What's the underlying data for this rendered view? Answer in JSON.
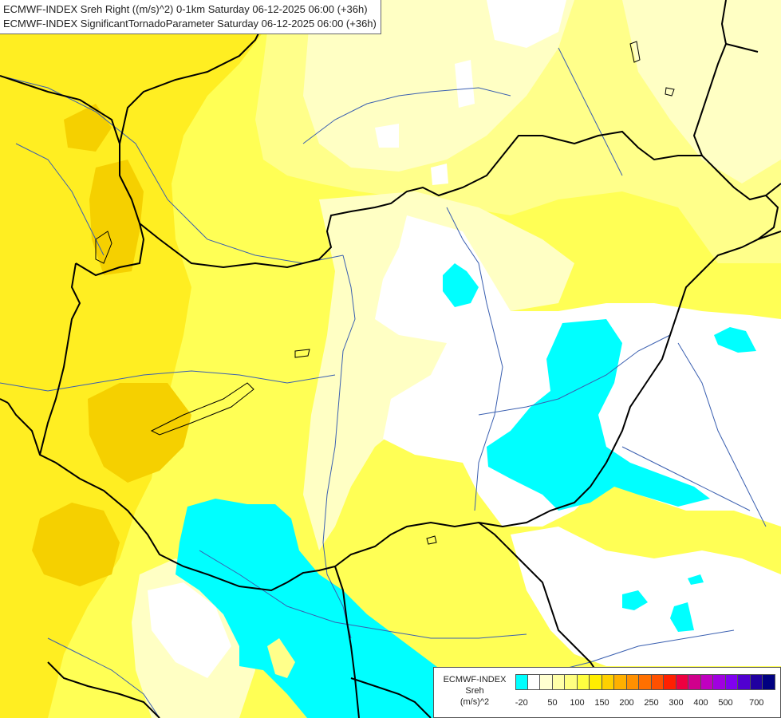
{
  "titles": {
    "line1": "ECMWF-INDEX Sreh Right ((m/s)^2) 0-1km Saturday 06-12-2025 06:00 (+36h)",
    "line2": "ECMWF-INDEX SignificantTornadoParameter Saturday 06-12-2025 06:00 (+36h)"
  },
  "legend": {
    "source": "ECMWF-INDEX",
    "variable": "Sreh",
    "unit": "(m/s)^2",
    "ticks": [
      "-20",
      "50",
      "100",
      "150",
      "200",
      "250",
      "300",
      "400",
      "500",
      "700"
    ],
    "colors": [
      "#00ffff",
      "#ffffff",
      "#ffffd0",
      "#ffffa8",
      "#ffff80",
      "#ffff40",
      "#ffee00",
      "#ffd000",
      "#ffb000",
      "#ff9000",
      "#ff7000",
      "#ff5000",
      "#ff2000",
      "#ee0040",
      "#d0008c",
      "#c000c0",
      "#a000e0",
      "#8000f0",
      "#5000d0",
      "#2000a0",
      "#000080"
    ]
  },
  "map": {
    "color_pale_yellow": "#ffffc4",
    "color_light_yellow": "#ffff8a",
    "color_yellow": "#ffff55",
    "color_deep_yellow": "#ffee22",
    "color_gold": "#f5d000",
    "color_white": "#ffffff",
    "color_cyan": "#00ffff",
    "border_color": "#000000",
    "river_color": "#3a5fb0"
  }
}
